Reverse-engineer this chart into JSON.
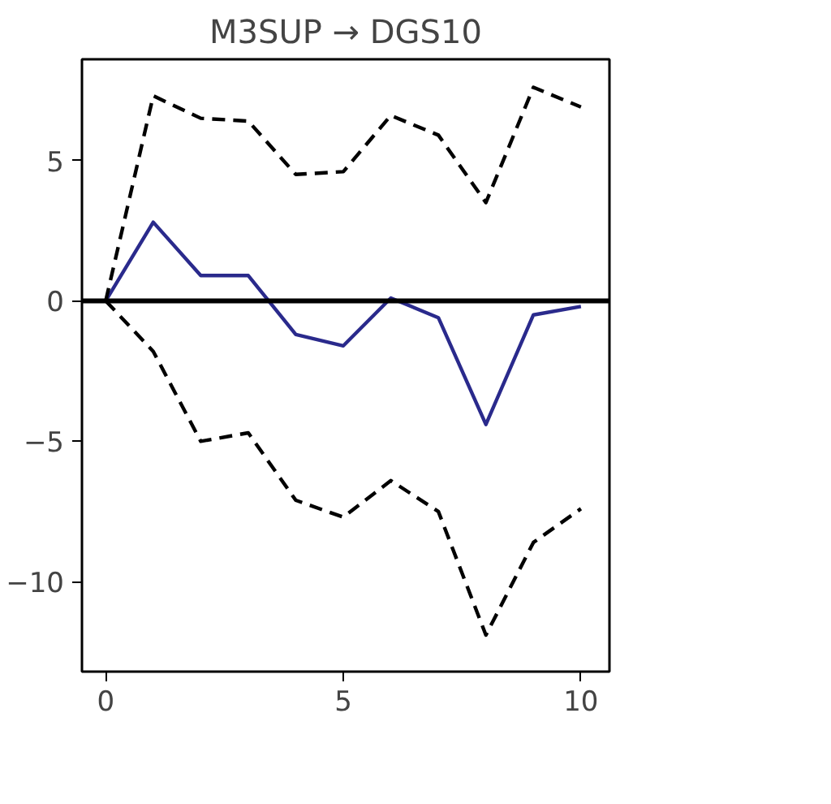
{
  "chart_data": {
    "type": "line",
    "title": "M3SUP → DGS10",
    "x": [
      0,
      1,
      2,
      3,
      4,
      5,
      6,
      7,
      8,
      9,
      10
    ],
    "series": [
      {
        "color": "#2a2a8c",
        "line_style": "solid",
        "values": [
          0,
          2.8,
          0.9,
          0.9,
          -1.2,
          -1.6,
          0.1,
          -0.6,
          -4.4,
          -0.5,
          -0.2
        ]
      },
      {
        "color": "#000000",
        "line_style": "dashed",
        "values": [
          0,
          7.3,
          6.5,
          6.4,
          4.5,
          4.6,
          6.6,
          5.9,
          3.5,
          7.6,
          6.9
        ]
      },
      {
        "color": "#000000",
        "line_style": "dashed",
        "values": [
          0,
          -1.8,
          -5.0,
          -4.7,
          -7.1,
          -7.7,
          -6.4,
          -7.5,
          -11.9,
          -8.6,
          -7.4
        ]
      }
    ],
    "xlim": [
      -0.5,
      10.6
    ],
    "ylim": [
      -13.2,
      8.6
    ],
    "xticks": [
      0,
      5,
      10
    ],
    "yticks": [
      -10,
      -5,
      0,
      5
    ],
    "ref_lines": [
      {
        "axis": "y",
        "value": 0,
        "color": "#000000",
        "line_style": "solid"
      }
    ],
    "grid": false,
    "marker": "none"
  }
}
